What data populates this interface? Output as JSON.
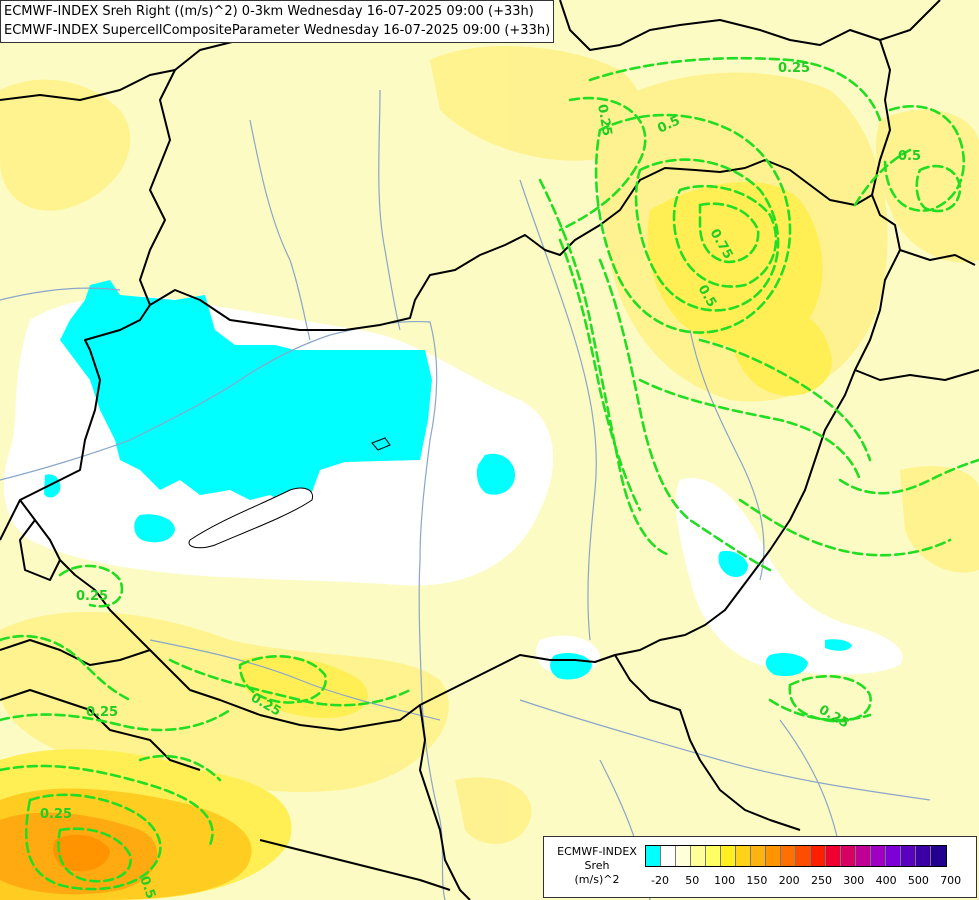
{
  "title": {
    "line1": "ECMWF-INDEX Sreh Right ((m/s)^2) 0-3km Wednesday 16-07-2025 09:00 (+33h)",
    "line2": "ECMWF-INDEX SupercellCompositeParameter Wednesday 16-07-2025 09:00 (+33h)"
  },
  "legend": {
    "name_line1": "ECMWF-INDEX",
    "name_line2": "Sreh",
    "name_line3": "(m/s)^2",
    "ticks": [
      "-20",
      "50",
      "100",
      "150",
      "200",
      "250",
      "300",
      "400",
      "500",
      "700"
    ],
    "colors": [
      "#00ffff",
      "#ffffff",
      "#ffffd9",
      "#ffff9a",
      "#ffff66",
      "#ffee22",
      "#ffd21a",
      "#ffb310",
      "#ff9400",
      "#ff7000",
      "#ff4d00",
      "#ff1f00",
      "#ee0030",
      "#d80062",
      "#c00094",
      "#a000c4",
      "#7e00d8",
      "#5a00c0",
      "#3b00a5",
      "#220090"
    ]
  },
  "contours": {
    "color": "#22dd22",
    "labels": [
      "0.25",
      "0.5",
      "0.25",
      "0.5",
      "0.75",
      "0.5",
      "0.25",
      "0.25",
      "0.25",
      "0.25",
      "0.25",
      "0.5"
    ]
  },
  "colors": {
    "background": "#fdfbc4",
    "border": "#000000",
    "river": "#8aa6c8",
    "sreh_low": "#00ffff",
    "white_band": "#ffffff",
    "yellow_mid": "#ffef55",
    "orange": "#ffb310"
  }
}
